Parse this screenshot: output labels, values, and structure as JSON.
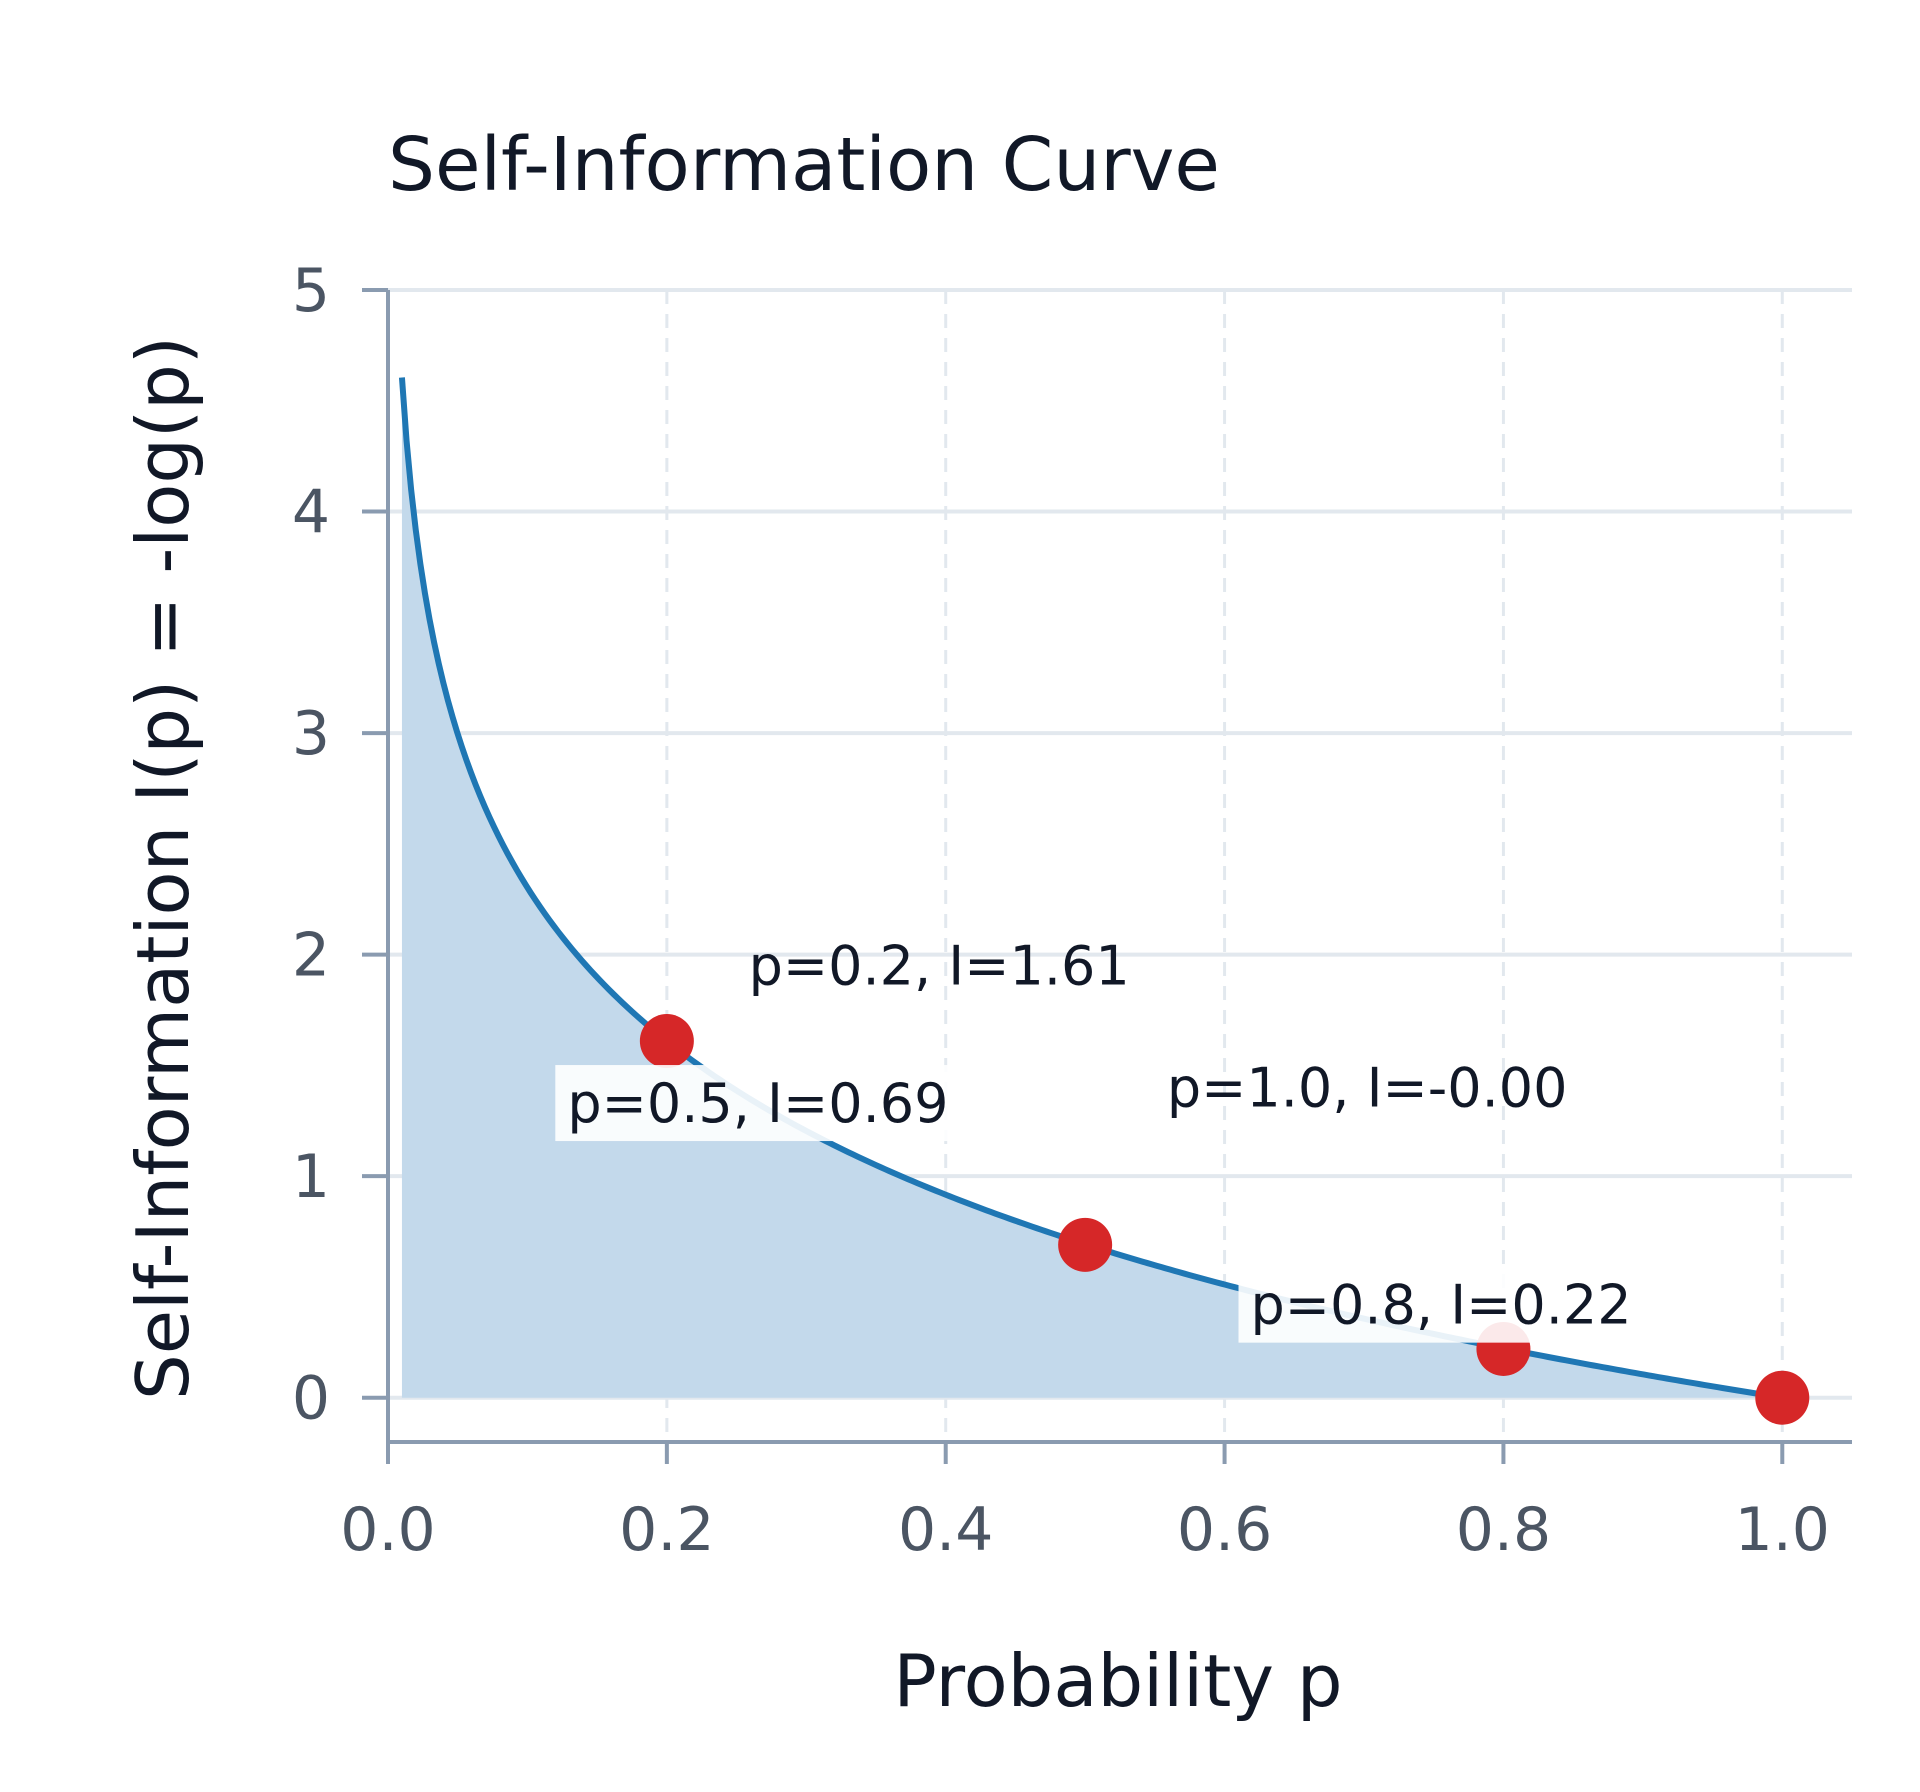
{
  "chart_data": {
    "type": "line",
    "title": "Self-Information Curve",
    "xlabel": "Probability p",
    "ylabel": "Self-Information I(p) = -log(p)",
    "xlim": [
      0.0,
      1.05
    ],
    "ylim": [
      -0.2,
      5.0
    ],
    "x_ticks": [
      0.0,
      0.2,
      0.4,
      0.6,
      0.8,
      1.0
    ],
    "x_tick_labels": [
      "0.0",
      "0.2",
      "0.4",
      "0.6",
      "0.8",
      "1.0"
    ],
    "y_ticks": [
      0,
      1,
      2,
      3,
      4,
      5
    ],
    "y_tick_labels": [
      "0",
      "1",
      "2",
      "3",
      "4",
      "5"
    ],
    "grid": true,
    "series": [
      {
        "function": "-ln(p)",
        "x_range": [
          0.01,
          1.0
        ],
        "color": "#1f77b4",
        "fill_color": "#c3d9eb"
      }
    ],
    "points": [
      {
        "x": 0.2,
        "y": 1.61
      },
      {
        "x": 0.5,
        "y": 0.69
      },
      {
        "x": 0.8,
        "y": 0.22
      },
      {
        "x": 1.0,
        "y": 0.0
      }
    ],
    "point_color": "#d62728",
    "annotations": [
      {
        "text": "p=0.2, I=1.61",
        "x": 0.25,
        "y": 1.95,
        "boxed": false
      },
      {
        "text": "p=0.5, I=0.69",
        "x": 0.12,
        "y": 1.33,
        "boxed": true
      },
      {
        "text": "p=0.8, I=0.22",
        "x": 0.61,
        "y": 0.42,
        "boxed": true
      },
      {
        "text": "p=1.0, I=-0.00",
        "x": 0.55,
        "y": 1.4,
        "boxed": false
      }
    ]
  }
}
